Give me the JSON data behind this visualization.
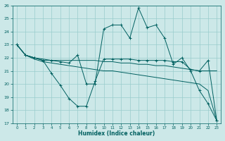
{
  "xlabel": "Humidex (Indice chaleur)",
  "bg_color": "#cce8e8",
  "line_color": "#006060",
  "grid_color": "#99cccc",
  "xlim": [
    -0.5,
    23.5
  ],
  "ylim": [
    17,
    26
  ],
  "yticks": [
    17,
    18,
    19,
    20,
    21,
    22,
    23,
    24,
    25,
    26
  ],
  "xticks": [
    0,
    1,
    2,
    3,
    4,
    5,
    6,
    7,
    8,
    9,
    10,
    11,
    12,
    13,
    14,
    15,
    16,
    17,
    18,
    19,
    20,
    21,
    22,
    23
  ],
  "series_straight": [
    23.0,
    22.2,
    21.9,
    21.7,
    21.6,
    21.5,
    21.4,
    21.3,
    21.2,
    21.1,
    21.0,
    21.0,
    20.9,
    20.8,
    20.7,
    20.6,
    20.5,
    20.4,
    20.3,
    20.2,
    20.1,
    20.0,
    19.5,
    17.2
  ],
  "series_humidex": [
    23.0,
    22.2,
    22.0,
    21.8,
    21.8,
    21.7,
    21.6,
    22.2,
    20.0,
    20.0,
    24.2,
    24.5,
    24.5,
    23.5,
    25.8,
    24.3,
    24.5,
    23.5,
    21.5,
    22.0,
    21.0,
    19.5,
    18.5,
    17.2
  ],
  "series_vshaped": [
    23.0,
    22.2,
    22.0,
    21.8,
    20.8,
    19.9,
    18.9,
    18.3,
    18.3,
    20.2,
    21.9,
    21.9,
    21.9,
    21.9,
    21.8,
    21.8,
    21.8,
    21.8,
    21.7,
    21.7,
    21.1,
    21.0,
    21.8,
    17.2
  ],
  "series_flat": [
    23.0,
    22.2,
    22.0,
    21.9,
    21.8,
    21.8,
    21.8,
    21.8,
    21.8,
    21.8,
    21.7,
    21.7,
    21.6,
    21.6,
    21.5,
    21.5,
    21.4,
    21.4,
    21.3,
    21.2,
    21.1,
    21.0,
    21.0,
    21.0
  ]
}
